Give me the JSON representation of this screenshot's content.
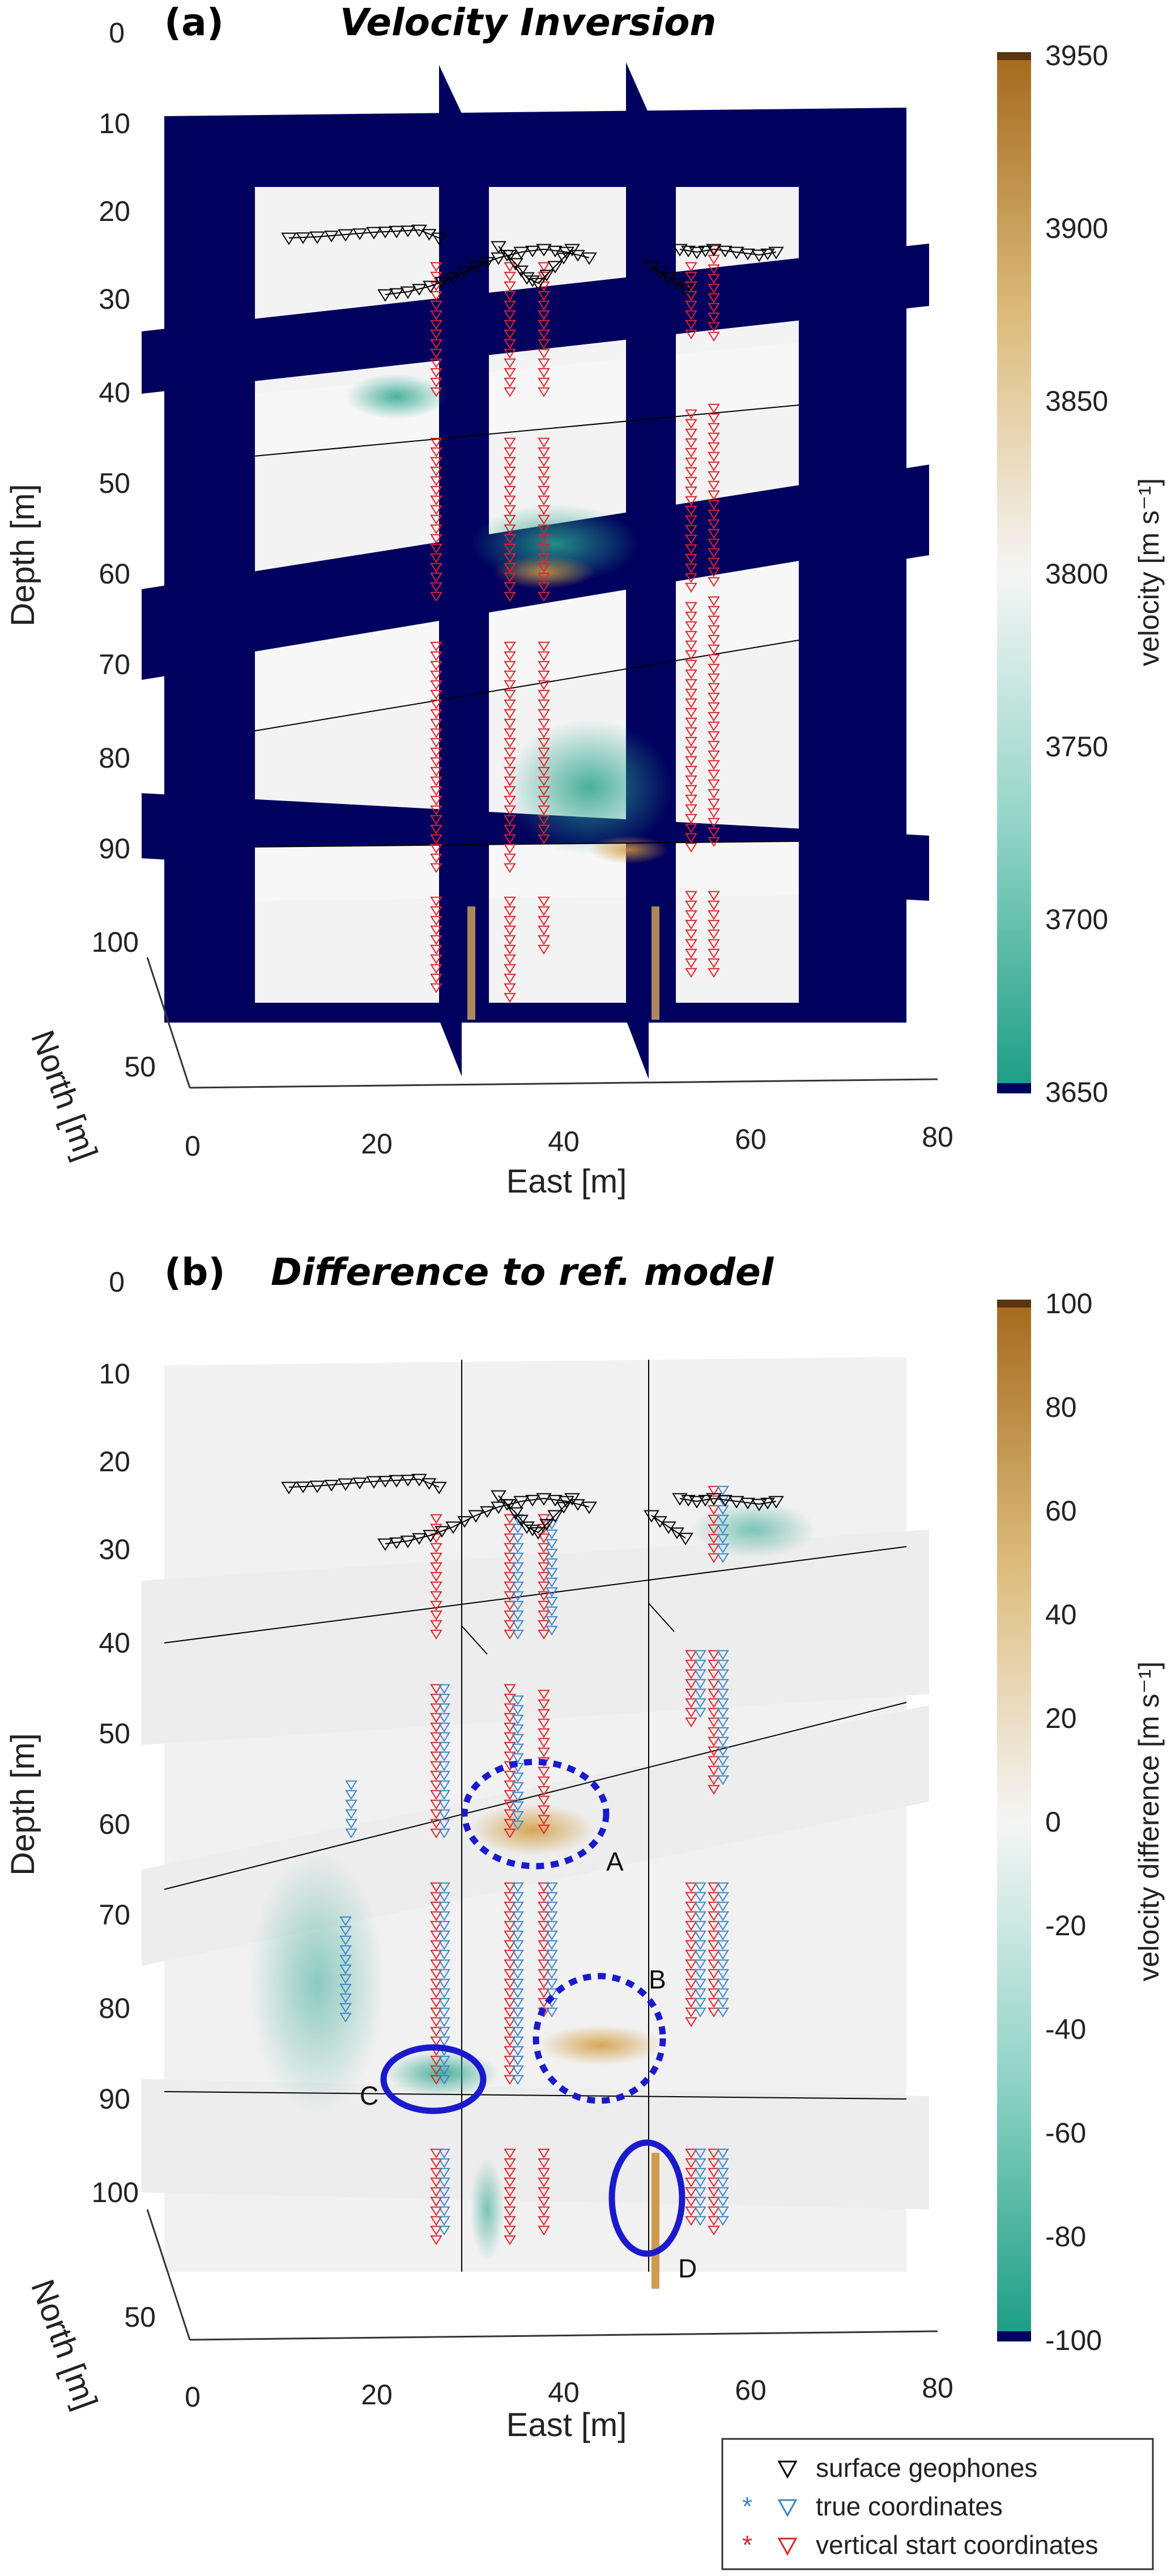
{
  "chart_data": [
    {
      "panel": "(a)",
      "title": "Velocity Inversion",
      "type": "heatmap",
      "xlabel": "East [m]",
      "ylabel": "Depth [m]",
      "zlabel": "North [m]",
      "x_ticks": [
        "0",
        "20",
        "40",
        "60",
        "80"
      ],
      "y_ticks": [
        "0",
        "10",
        "20",
        "30",
        "40",
        "50",
        "60",
        "70",
        "80",
        "90",
        "100"
      ],
      "z_ticks": [
        "50"
      ],
      "colorbar": {
        "label": "velocity [m s⁻¹]",
        "ticks": [
          "3950",
          "3900",
          "3850",
          "3800",
          "3750",
          "3700",
          "3650"
        ],
        "range": [
          3650,
          3950
        ],
        "colors": {
          "low": "#1a9d84",
          "mid": "#f5f5f5",
          "high": "#a56a1e",
          "out_of_range": "#00005e"
        }
      }
    },
    {
      "panel": "(b)",
      "title": "Difference to ref. model",
      "type": "heatmap",
      "xlabel": "East [m]",
      "ylabel": "Depth [m]",
      "zlabel": "North [m]",
      "x_ticks": [
        "0",
        "20",
        "40",
        "60",
        "80"
      ],
      "y_ticks": [
        "0",
        "10",
        "20",
        "30",
        "40",
        "50",
        "60",
        "70",
        "80",
        "90",
        "100"
      ],
      "z_ticks": [
        "50"
      ],
      "annotations": [
        "A",
        "B",
        "C",
        "D"
      ],
      "colorbar": {
        "label": "velocity difference [m s⁻¹]",
        "ticks": [
          "100",
          "80",
          "60",
          "40",
          "20",
          "0",
          "-20",
          "-40",
          "-60",
          "-80",
          "-100"
        ],
        "range": [
          -100,
          100
        ],
        "colors": {
          "low": "#1a9d84",
          "mid": "#f5f5f5",
          "high": "#a56a1e",
          "out_of_range": "#00005e"
        }
      }
    }
  ],
  "legend": {
    "items": [
      {
        "label": "surface geophones",
        "color": "#000000"
      },
      {
        "label": "true coordinates",
        "color": "#3f86c8"
      },
      {
        "label": "vertical start coordinates",
        "color": "#e0232a"
      }
    ]
  }
}
